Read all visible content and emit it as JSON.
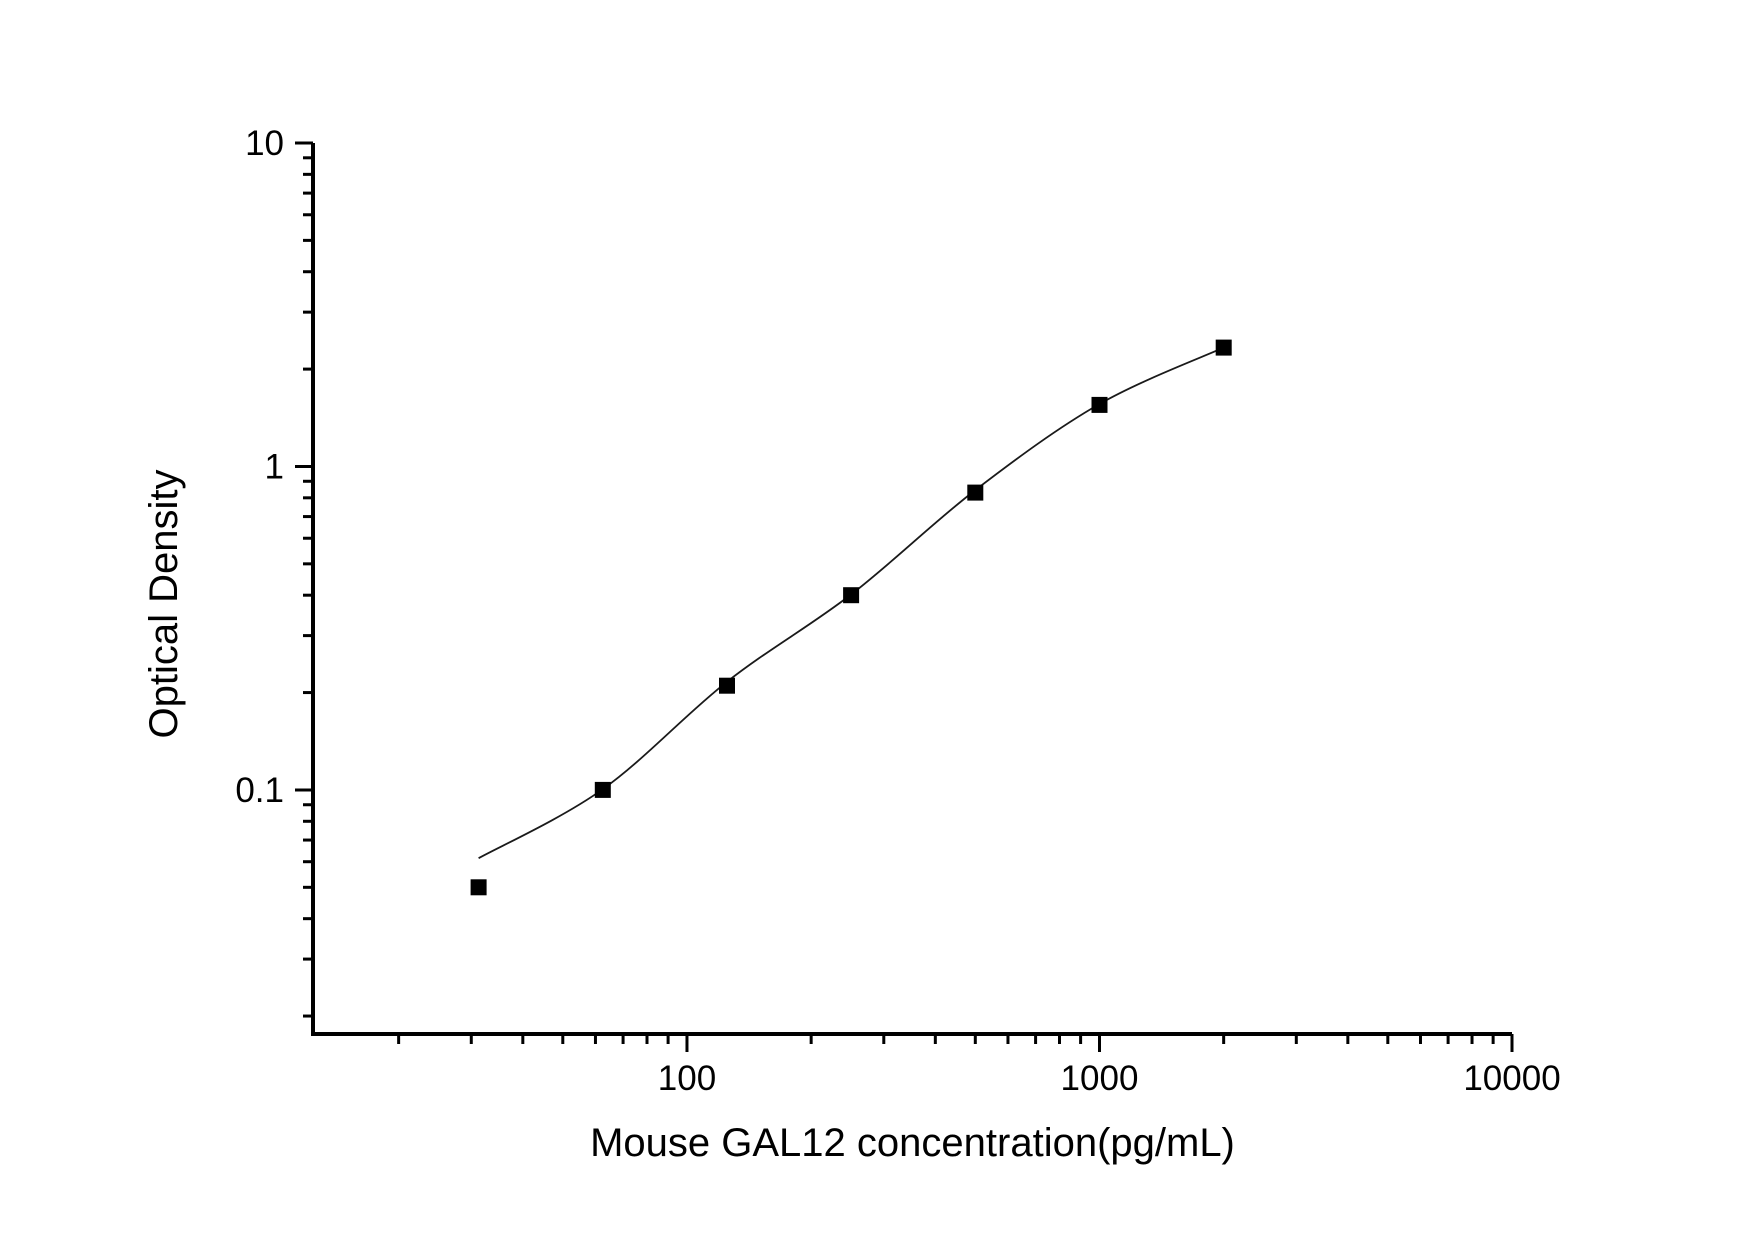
{
  "chart_data": {
    "type": "scatter",
    "title": "",
    "xlabel": "Mouse GAL12 concentration(pg/mL)",
    "ylabel": "Optical Density",
    "x_scale": "log",
    "y_scale": "log",
    "xlim": [
      12.4,
      10000
    ],
    "ylim": [
      0.0176,
      10
    ],
    "grid": false,
    "legend": false,
    "points": {
      "x": [
        31.25,
        62.5,
        125,
        250,
        500,
        1000,
        2000
      ],
      "y": [
        0.05,
        0.1,
        0.21,
        0.4,
        0.83,
        1.55,
        2.33
      ]
    },
    "fit_curve": {
      "x": [
        31.25,
        62.5,
        125,
        250,
        500,
        1000,
        2000
      ],
      "y": [
        0.0615,
        0.1005,
        0.216,
        0.402,
        0.845,
        1.56,
        2.33
      ]
    },
    "x_ticks": {
      "major_values": [
        100,
        1000,
        10000
      ],
      "major_labels": [
        "100",
        "1000",
        "10000"
      ],
      "minor_values": [
        20,
        30,
        40,
        50,
        60,
        70,
        80,
        90,
        200,
        300,
        400,
        500,
        600,
        700,
        800,
        900,
        2000,
        3000,
        4000,
        5000,
        6000,
        7000,
        8000,
        9000
      ]
    },
    "y_ticks": {
      "major_values": [
        0.1,
        1,
        10
      ],
      "major_labels": [
        "0.1",
        "1",
        "10"
      ],
      "minor_values": [
        0.02,
        0.03,
        0.04,
        0.05,
        0.06,
        0.07,
        0.08,
        0.09,
        0.2,
        0.3,
        0.4,
        0.5,
        0.6,
        0.7,
        0.8,
        0.9,
        2,
        3,
        4,
        5,
        6,
        7,
        8,
        9
      ]
    },
    "style": {
      "background": "#ffffff",
      "axis_color": "#000000",
      "text_color": "#000000",
      "marker_shape": "filled-square",
      "marker_color": "#000000",
      "curve_color": "#1a1a1a"
    }
  }
}
